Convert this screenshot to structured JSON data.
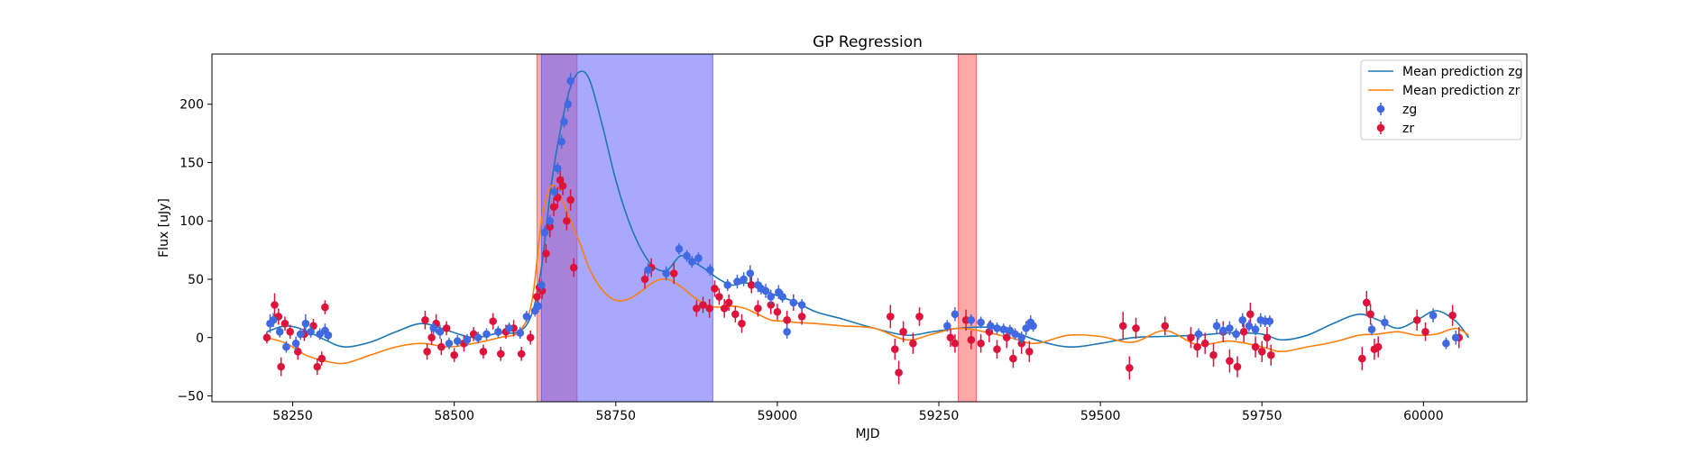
{
  "chart_data": {
    "type": "scatter",
    "title": "GP Regression",
    "xlabel": "MJD",
    "ylabel": "Flux [uJy]",
    "xlim": [
      58125,
      60160
    ],
    "ylim": [
      -55,
      243
    ],
    "xticks": [
      58250,
      58500,
      58750,
      59000,
      59250,
      59500,
      59750,
      60000
    ],
    "yticks": [
      -50,
      0,
      50,
      100,
      150,
      200
    ],
    "grid": false,
    "legend_position": "top-right",
    "colors": {
      "mean_zg": "#1f77b4",
      "mean_zr": "#ff7f0e",
      "points_zg": "#4169e1",
      "points_zr": "#dc143c",
      "span_red": "#ff6060",
      "span_blue": "#6060ff"
    },
    "shaded_regions": [
      {
        "x0": 58628,
        "x1": 58690,
        "color": "red"
      },
      {
        "x0": 58635,
        "x1": 58900,
        "color": "blue"
      },
      {
        "x0": 59280,
        "x1": 59308,
        "color": "red"
      }
    ],
    "lines": [
      {
        "name": "Mean prediction zg",
        "x": [
          58210,
          58240,
          58270,
          58300,
          58330,
          58370,
          58410,
          58450,
          58490,
          58530,
          58570,
          58600,
          58620,
          58635,
          58650,
          58665,
          58680,
          58695,
          58710,
          58730,
          58750,
          58770,
          58790,
          58810,
          58830,
          58850,
          58870,
          58890,
          58910,
          58930,
          58950,
          58970,
          58990,
          59010,
          59030,
          59060,
          59100,
          59150,
          59200,
          59240,
          59280,
          59320,
          59360,
          59400,
          59450,
          59500,
          59550,
          59600,
          59650,
          59700,
          59750,
          59780,
          59820,
          59860,
          59900,
          59930,
          59960,
          59990,
          60020,
          60050,
          60070
        ],
        "y": [
          5,
          10,
          6,
          -2,
          -8,
          -4,
          5,
          12,
          6,
          0,
          4,
          5,
          20,
          60,
          130,
          180,
          215,
          228,
          220,
          180,
          135,
          100,
          75,
          60,
          58,
          70,
          65,
          58,
          50,
          45,
          47,
          44,
          38,
          34,
          30,
          22,
          16,
          8,
          2,
          5,
          8,
          9,
          6,
          -2,
          -8,
          -5,
          0,
          1,
          2,
          4,
          3,
          -2,
          2,
          12,
          20,
          15,
          8,
          15,
          23,
          14,
          0
        ]
      },
      {
        "name": "Mean prediction zr",
        "x": [
          58210,
          58240,
          58270,
          58300,
          58330,
          58370,
          58410,
          58450,
          58490,
          58530,
          58570,
          58600,
          58620,
          58635,
          58650,
          58665,
          58680,
          58695,
          58710,
          58730,
          58750,
          58770,
          58790,
          58810,
          58830,
          58850,
          58870,
          58890,
          58910,
          58930,
          58950,
          58970,
          58990,
          59010,
          59030,
          59060,
          59100,
          59150,
          59200,
          59240,
          59280,
          59320,
          59360,
          59400,
          59450,
          59500,
          59550,
          59600,
          59650,
          59700,
          59750,
          59780,
          59820,
          59860,
          59900,
          59930,
          59960,
          59990,
          60020,
          60050,
          60070
        ],
        "y": [
          0,
          -5,
          -15,
          -20,
          -22,
          -15,
          -8,
          -5,
          -8,
          -5,
          0,
          5,
          30,
          100,
          130,
          120,
          100,
          80,
          58,
          40,
          32,
          33,
          40,
          48,
          50,
          44,
          35,
          28,
          26,
          27,
          25,
          20,
          15,
          14,
          13,
          12,
          10,
          8,
          -2,
          3,
          8,
          5,
          0,
          -5,
          2,
          1,
          -4,
          6,
          -6,
          -3,
          -8,
          -12,
          -8,
          -4,
          2,
          3,
          5,
          2,
          3,
          8,
          2
        ]
      }
    ],
    "series": [
      {
        "name": "zg",
        "x": [
          58215,
          58220,
          58230,
          58240,
          58255,
          58262,
          58270,
          58278,
          58292,
          58300,
          58305,
          58468,
          58478,
          58492,
          58505,
          58520,
          58537,
          58550,
          58568,
          58585,
          58602,
          58612,
          58625,
          58630,
          58635,
          58640,
          58648,
          58655,
          58660,
          58666,
          58670,
          58676,
          58680,
          58800,
          58828,
          58848,
          58860,
          58868,
          58878,
          58896,
          58923,
          58938,
          58948,
          58958,
          58970,
          58975,
          58982,
          58990,
          59002,
          59008,
          59015,
          59025,
          59038,
          59263,
          59275,
          59300,
          59315,
          59330,
          59340,
          59350,
          59360,
          59368,
          59378,
          59385,
          59392,
          59396,
          59652,
          59680,
          59690,
          59700,
          59710,
          59720,
          59730,
          59740,
          59748,
          59755,
          59762,
          59920,
          59940,
          60015,
          60035,
          60050
        ],
        "y": [
          12,
          15,
          5,
          -8,
          -5,
          3,
          12,
          5,
          3,
          6,
          2,
          8,
          5,
          -5,
          -3,
          -2,
          0,
          3,
          5,
          8,
          4,
          18,
          23,
          27,
          45,
          90,
          100,
          125,
          145,
          168,
          185,
          200,
          220,
          58,
          55,
          76,
          70,
          65,
          68,
          58,
          45,
          48,
          50,
          55,
          45,
          42,
          40,
          35,
          39,
          35,
          5,
          30,
          28,
          10,
          20,
          15,
          13,
          10,
          8,
          7,
          6,
          3,
          0,
          8,
          13,
          10,
          3,
          10,
          6,
          8,
          3,
          15,
          10,
          7,
          15,
          14,
          14,
          7,
          13,
          19,
          -5,
          0
        ],
        "err": [
          8,
          6,
          5,
          5,
          6,
          5,
          8,
          5,
          5,
          6,
          5,
          5,
          6,
          5,
          5,
          5,
          5,
          5,
          5,
          5,
          5,
          5,
          5,
          5,
          5,
          6,
          5,
          5,
          5,
          6,
          5,
          6,
          7,
          6,
          6,
          5,
          5,
          5,
          5,
          5,
          5,
          6,
          6,
          7,
          6,
          5,
          6,
          6,
          6,
          5,
          6,
          5,
          5,
          5,
          6,
          5,
          5,
          5,
          5,
          5,
          5,
          5,
          5,
          6,
          6,
          5,
          5,
          6,
          5,
          6,
          5,
          6,
          5,
          5,
          6,
          5,
          5,
          5,
          6,
          6,
          5,
          6
        ]
      },
      {
        "name": "zr",
        "x": [
          58210,
          58222,
          58228,
          58232,
          58238,
          58246,
          58258,
          58268,
          58282,
          58288,
          58295,
          58300,
          58455,
          58458,
          58465,
          58472,
          58480,
          58488,
          58500,
          58515,
          58530,
          58545,
          58560,
          58572,
          58580,
          58592,
          58604,
          58618,
          58628,
          58632,
          58636,
          58642,
          58648,
          58654,
          58660,
          58664,
          58668,
          58674,
          58680,
          58685,
          58795,
          58805,
          58840,
          58875,
          58885,
          58895,
          58903,
          58910,
          58918,
          58925,
          58935,
          58945,
          58960,
          58970,
          58990,
          59000,
          59015,
          59025,
          59038,
          59175,
          59182,
          59188,
          59195,
          59210,
          59220,
          59268,
          59275,
          59292,
          59300,
          59315,
          59328,
          59340,
          59355,
          59365,
          59378,
          59390,
          59535,
          59545,
          59555,
          59600,
          59640,
          59650,
          59662,
          59675,
          59690,
          59700,
          59712,
          59722,
          59732,
          59740,
          59750,
          59758,
          59764,
          59905,
          59912,
          59918,
          59924,
          59930,
          59990,
          60003,
          60045,
          60055
        ],
        "y": [
          0,
          28,
          18,
          -25,
          12,
          5,
          -12,
          3,
          10,
          -25,
          -18,
          26,
          15,
          -12,
          0,
          12,
          -8,
          8,
          -15,
          -5,
          3,
          -12,
          14,
          -14,
          5,
          8,
          -14,
          0,
          35,
          43,
          40,
          72,
          95,
          112,
          120,
          135,
          130,
          100,
          118,
          60,
          50,
          60,
          55,
          25,
          28,
          25,
          42,
          35,
          25,
          30,
          20,
          12,
          45,
          25,
          28,
          22,
          15,
          30,
          18,
          18,
          -10,
          -30,
          5,
          -5,
          18,
          0,
          -5,
          15,
          -2,
          -5,
          5,
          -10,
          0,
          -18,
          -5,
          -12,
          10,
          -26,
          8,
          10,
          0,
          -8,
          -5,
          -15,
          5,
          -20,
          -25,
          5,
          20,
          -8,
          -12,
          0,
          -15,
          -18,
          30,
          20,
          -10,
          -8,
          15,
          5,
          19,
          0
        ],
        "err": [
          5,
          10,
          7,
          8,
          6,
          6,
          7,
          6,
          6,
          7,
          6,
          6,
          8,
          7,
          6,
          8,
          7,
          6,
          6,
          7,
          6,
          6,
          7,
          6,
          6,
          7,
          6,
          6,
          7,
          8,
          7,
          8,
          9,
          8,
          9,
          9,
          8,
          8,
          9,
          8,
          8,
          8,
          9,
          7,
          7,
          8,
          7,
          7,
          8,
          7,
          7,
          8,
          7,
          7,
          8,
          7,
          8,
          7,
          7,
          10,
          9,
          10,
          9,
          9,
          8,
          8,
          8,
          9,
          8,
          8,
          9,
          8,
          9,
          8,
          9,
          9,
          12,
          10,
          9,
          8,
          9,
          9,
          9,
          10,
          9,
          10,
          9,
          9,
          10,
          9,
          9,
          9,
          9,
          10,
          10,
          9,
          9,
          9,
          9,
          8,
          9,
          9
        ]
      }
    ]
  }
}
